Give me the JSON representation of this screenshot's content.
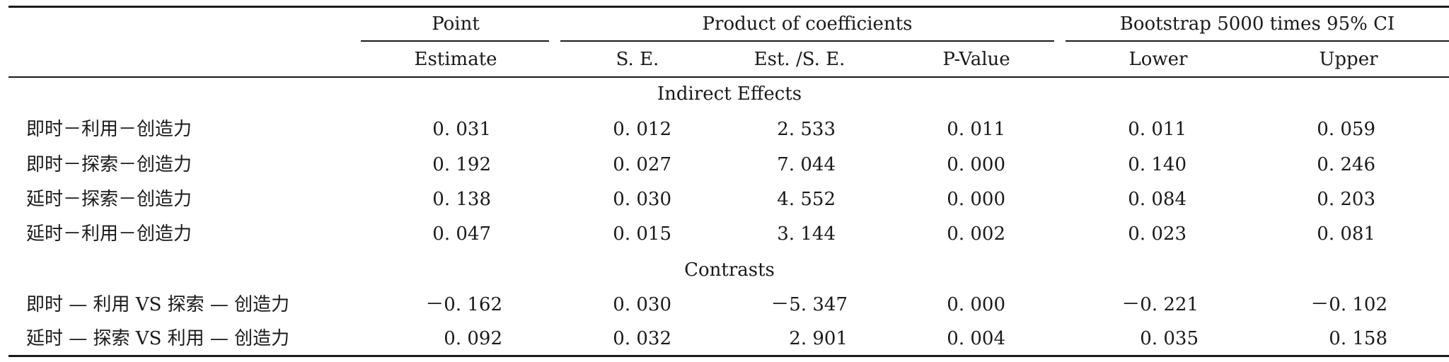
{
  "header": {
    "group_labels": [
      "Point",
      "Product of coefficients",
      "Bootstrap 5000 times 95% CI"
    ],
    "columns": [
      "Estimate",
      "S. E.",
      "Est. /S. E.",
      "P-Value",
      "Lower",
      "Upper"
    ]
  },
  "sections": [
    {
      "title": "Indirect Effects",
      "rows": [
        {
          "label": "即时－利用－创造力",
          "values": [
            "0. 031",
            "0. 012",
            "2. 533",
            "0. 011",
            "0. 011",
            "0. 059"
          ]
        },
        {
          "label": "即时－探索－创造力",
          "values": [
            "0. 192",
            "0. 027",
            "7. 044",
            "0. 000",
            "0. 140",
            "0. 246"
          ]
        },
        {
          "label": "延时－探索－创造力",
          "values": [
            "0. 138",
            "0. 030",
            "4. 552",
            "0. 000",
            "0. 084",
            "0. 203"
          ]
        },
        {
          "label": "延时－利用－创造力",
          "values": [
            "0. 047",
            "0. 015",
            "3. 144",
            "0. 002",
            "0. 023",
            "0. 081"
          ]
        }
      ]
    },
    {
      "title": "Contrasts",
      "rows": [
        {
          "label": "即时 — 利用 VS 探索 — 创造力",
          "values": [
            "－0. 162",
            "0. 030",
            "－5. 347",
            "0. 000",
            "－0. 221",
            "－0. 102"
          ]
        },
        {
          "label": "延时 — 探索 VS 利用 — 创造力",
          "values": [
            "0. 092",
            "0. 032",
            "2. 901",
            "0. 004",
            "0. 035",
            "0. 158"
          ]
        }
      ]
    }
  ]
}
